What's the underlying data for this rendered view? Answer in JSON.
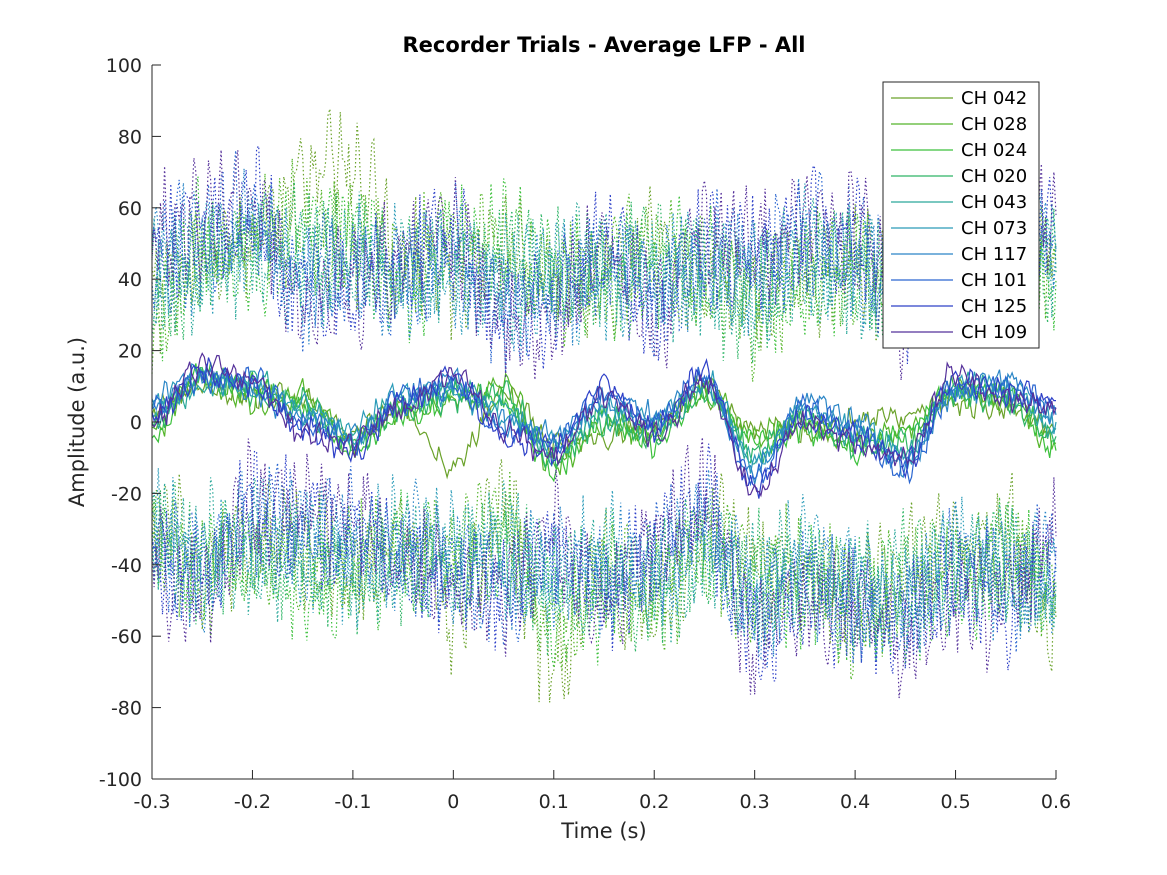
{
  "chart_data": {
    "type": "line",
    "title": "Recorder Trials - Average LFP - All",
    "xlabel": "Time (s)",
    "ylabel": "Amplitude (a.u.)",
    "xlim": [
      -0.3,
      0.6
    ],
    "ylim": [
      -100,
      100
    ],
    "xticks": [
      -0.3,
      -0.2,
      -0.1,
      0,
      0.1,
      0.2,
      0.3,
      0.4,
      0.5,
      0.6
    ],
    "xtick_labels": [
      "-0.3",
      "-0.2",
      "-0.1",
      "0",
      "0.1",
      "0.2",
      "0.3",
      "0.4",
      "0.5",
      "0.6"
    ],
    "yticks": [
      -100,
      -80,
      -60,
      -40,
      -20,
      0,
      20,
      40,
      60,
      80,
      100
    ],
    "ytick_labels": [
      "-100",
      "-80",
      "-60",
      "-40",
      "-20",
      "0",
      "20",
      "40",
      "60",
      "80",
      "100"
    ],
    "grid": false,
    "legend_position": "top-right",
    "note_band_style": "dotted upper and lower bands per channel; solid mean trace",
    "series": [
      {
        "name": "CH 042",
        "color": "#6aa22a",
        "x": [
          -0.3,
          -0.25,
          -0.2,
          -0.15,
          -0.1,
          -0.05,
          0,
          0.05,
          0.1,
          0.15,
          0.2,
          0.25,
          0.3,
          0.35,
          0.4,
          0.45,
          0.5,
          0.55,
          0.6
        ],
        "mean": [
          3,
          10,
          8,
          6,
          -3,
          4,
          -12,
          8,
          -6,
          -4,
          0,
          8,
          -2,
          -3,
          0,
          2,
          6,
          4,
          -2
        ],
        "upper": [
          35,
          45,
          50,
          65,
          75,
          45,
          40,
          50,
          40,
          35,
          50,
          40,
          35,
          40,
          45,
          35,
          40,
          45,
          50
        ],
        "lower": [
          -25,
          -40,
          -30,
          -35,
          -45,
          -30,
          -55,
          -25,
          -70,
          -40,
          -55,
          -30,
          -40,
          -45,
          -50,
          -40,
          -35,
          -30,
          -55
        ]
      },
      {
        "name": "CH 028",
        "color": "#55b52a",
        "x": [
          -0.3,
          -0.25,
          -0.2,
          -0.15,
          -0.1,
          -0.05,
          0,
          0.05,
          0.1,
          0.15,
          0.2,
          0.25,
          0.3,
          0.35,
          0.4,
          0.45,
          0.5,
          0.55,
          0.6
        ],
        "mean": [
          -2,
          12,
          6,
          8,
          -6,
          3,
          6,
          10,
          -12,
          0,
          -4,
          10,
          -4,
          0,
          -6,
          -2,
          8,
          6,
          -6
        ],
        "upper": [
          30,
          48,
          55,
          55,
          50,
          45,
          55,
          45,
          35,
          45,
          50,
          40,
          30,
          45,
          40,
          35,
          45,
          40,
          45
        ],
        "lower": [
          -30,
          -45,
          -35,
          -40,
          -35,
          -40,
          -35,
          -30,
          -60,
          -45,
          -50,
          -35,
          -45,
          -40,
          -55,
          -45,
          -40,
          -35,
          -50
        ]
      },
      {
        "name": "CH 024",
        "color": "#3cc03c",
        "x": [
          -0.3,
          -0.25,
          -0.2,
          -0.15,
          -0.1,
          -0.05,
          0,
          0.05,
          0.1,
          0.15,
          0.2,
          0.25,
          0.3,
          0.35,
          0.4,
          0.45,
          0.5,
          0.55,
          0.6
        ],
        "mean": [
          -4,
          14,
          10,
          4,
          -8,
          2,
          8,
          6,
          -14,
          2,
          -6,
          8,
          -6,
          -2,
          -8,
          -4,
          10,
          8,
          -8
        ],
        "upper": [
          32,
          50,
          45,
          50,
          55,
          40,
          50,
          50,
          40,
          40,
          45,
          45,
          35,
          40,
          45,
          40,
          40,
          45,
          40
        ],
        "lower": [
          -35,
          -40,
          -38,
          -45,
          -50,
          -35,
          -40,
          -35,
          -55,
          -50,
          -45,
          -40,
          -50,
          -45,
          -50,
          -50,
          -45,
          -40,
          -45
        ]
      },
      {
        "name": "CH 020",
        "color": "#2eb566",
        "x": [
          -0.3,
          -0.25,
          -0.2,
          -0.15,
          -0.1,
          -0.05,
          0,
          0.05,
          0.1,
          0.15,
          0.2,
          0.25,
          0.3,
          0.35,
          0.4,
          0.45,
          0.5,
          0.55,
          0.6
        ],
        "mean": [
          0,
          12,
          8,
          6,
          -6,
          4,
          6,
          8,
          -10,
          0,
          -4,
          8,
          -8,
          0,
          -6,
          -6,
          8,
          6,
          -4
        ],
        "upper": [
          38,
          45,
          48,
          52,
          48,
          42,
          48,
          42,
          45,
          42,
          48,
          38,
          32,
          42,
          42,
          38,
          42,
          42,
          42
        ],
        "lower": [
          -32,
          -38,
          -40,
          -38,
          -42,
          -38,
          -38,
          -32,
          -48,
          -42,
          -48,
          -38,
          -42,
          -42,
          -48,
          -42,
          -42,
          -38,
          -48
        ]
      },
      {
        "name": "CH 043",
        "color": "#2aa89a",
        "x": [
          -0.3,
          -0.25,
          -0.2,
          -0.15,
          -0.1,
          -0.05,
          0,
          0.05,
          0.1,
          0.15,
          0.2,
          0.25,
          0.3,
          0.35,
          0.4,
          0.45,
          0.5,
          0.55,
          0.6
        ],
        "mean": [
          2,
          10,
          12,
          2,
          -4,
          6,
          10,
          4,
          -8,
          2,
          -2,
          10,
          -10,
          2,
          -4,
          -8,
          10,
          8,
          -2
        ],
        "upper": [
          40,
          42,
          50,
          45,
          45,
          45,
          45,
          40,
          42,
          45,
          42,
          40,
          38,
          45,
          40,
          42,
          45,
          45,
          45
        ],
        "lower": [
          -30,
          -35,
          -35,
          -40,
          -40,
          -35,
          -40,
          -35,
          -45,
          -40,
          -45,
          -35,
          -45,
          -40,
          -45,
          -45,
          -40,
          -40,
          -45
        ]
      },
      {
        "name": "CH 073",
        "color": "#2a9bb8",
        "x": [
          -0.3,
          -0.25,
          -0.2,
          -0.15,
          -0.1,
          -0.05,
          0,
          0.05,
          0.1,
          0.15,
          0.2,
          0.25,
          0.3,
          0.35,
          0.4,
          0.45,
          0.5,
          0.55,
          0.6
        ],
        "mean": [
          4,
          12,
          10,
          4,
          -2,
          8,
          8,
          2,
          -6,
          4,
          0,
          12,
          -12,
          4,
          -2,
          -10,
          10,
          10,
          0
        ],
        "upper": [
          42,
          48,
          52,
          42,
          40,
          45,
          42,
          38,
          40,
          40,
          40,
          42,
          40,
          48,
          42,
          40,
          42,
          48,
          48
        ],
        "lower": [
          -28,
          -38,
          -32,
          -35,
          -38,
          -32,
          -35,
          -40,
          -42,
          -38,
          -42,
          -32,
          -48,
          -38,
          -45,
          -48,
          -38,
          -42,
          -42
        ]
      },
      {
        "name": "CH 117",
        "color": "#2a85c6",
        "x": [
          -0.3,
          -0.25,
          -0.2,
          -0.15,
          -0.1,
          -0.05,
          0,
          0.05,
          0.1,
          0.15,
          0.2,
          0.25,
          0.3,
          0.35,
          0.4,
          0.45,
          0.5,
          0.55,
          0.6
        ],
        "mean": [
          6,
          14,
          8,
          2,
          -4,
          6,
          12,
          0,
          -4,
          6,
          2,
          10,
          -14,
          6,
          0,
          -12,
          8,
          12,
          2
        ],
        "upper": [
          45,
          50,
          55,
          40,
          45,
          40,
          45,
          35,
          38,
          42,
          38,
          45,
          42,
          50,
          45,
          38,
          45,
          50,
          50
        ],
        "lower": [
          -32,
          -40,
          -30,
          -32,
          -35,
          -35,
          -38,
          -42,
          -40,
          -42,
          -40,
          -30,
          -50,
          -42,
          -48,
          -52,
          -40,
          -45,
          -40
        ]
      },
      {
        "name": "CH 101",
        "color": "#2a66d0",
        "x": [
          -0.3,
          -0.25,
          -0.2,
          -0.15,
          -0.1,
          -0.05,
          0,
          0.05,
          0.1,
          0.15,
          0.2,
          0.25,
          0.3,
          0.35,
          0.4,
          0.45,
          0.5,
          0.55,
          0.6
        ],
        "mean": [
          4,
          12,
          12,
          0,
          -6,
          8,
          10,
          -2,
          -6,
          8,
          0,
          12,
          -16,
          4,
          -2,
          -14,
          10,
          10,
          4
        ],
        "upper": [
          48,
          52,
          58,
          38,
          42,
          42,
          48,
          32,
          35,
          45,
          35,
          48,
          45,
          52,
          48,
          35,
          48,
          52,
          52
        ],
        "lower": [
          -35,
          -42,
          -28,
          -30,
          -32,
          -38,
          -40,
          -45,
          -38,
          -45,
          -38,
          -28,
          -55,
          -45,
          -50,
          -55,
          -42,
          -48,
          -38
        ]
      },
      {
        "name": "CH 125",
        "color": "#2e40c8",
        "x": [
          -0.3,
          -0.25,
          -0.2,
          -0.15,
          -0.1,
          -0.05,
          0,
          0.05,
          0.1,
          0.15,
          0.2,
          0.25,
          0.3,
          0.35,
          0.4,
          0.45,
          0.5,
          0.55,
          0.6
        ],
        "mean": [
          2,
          14,
          10,
          -2,
          -8,
          6,
          12,
          -4,
          -8,
          10,
          -2,
          14,
          -18,
          2,
          -4,
          -12,
          12,
          8,
          6
        ],
        "upper": [
          50,
          55,
          60,
          35,
          40,
          45,
          50,
          30,
          32,
          48,
          32,
          50,
          48,
          55,
          50,
          32,
          50,
          55,
          55
        ],
        "lower": [
          -38,
          -45,
          -25,
          -28,
          -30,
          -40,
          -42,
          -48,
          -35,
          -48,
          -35,
          -25,
          -60,
          -48,
          -52,
          -58,
          -45,
          -50,
          -35
        ]
      },
      {
        "name": "CH 109",
        "color": "#55309a",
        "x": [
          -0.3,
          -0.25,
          -0.2,
          -0.15,
          -0.1,
          -0.05,
          0,
          0.05,
          0.1,
          0.15,
          0.2,
          0.25,
          0.3,
          0.35,
          0.4,
          0.45,
          0.5,
          0.55,
          0.6
        ],
        "mean": [
          0,
          16,
          12,
          -4,
          -6,
          4,
          14,
          -2,
          -10,
          8,
          -4,
          12,
          -20,
          0,
          -6,
          -10,
          14,
          6,
          4
        ],
        "upper": [
          52,
          58,
          62,
          32,
          38,
          48,
          52,
          28,
          30,
          50,
          30,
          52,
          50,
          58,
          52,
          30,
          52,
          58,
          58
        ],
        "lower": [
          -40,
          -48,
          -22,
          -25,
          -28,
          -42,
          -45,
          -50,
          -32,
          -50,
          -32,
          -22,
          -62,
          -50,
          -55,
          -60,
          -48,
          -52,
          -32
        ]
      }
    ]
  }
}
